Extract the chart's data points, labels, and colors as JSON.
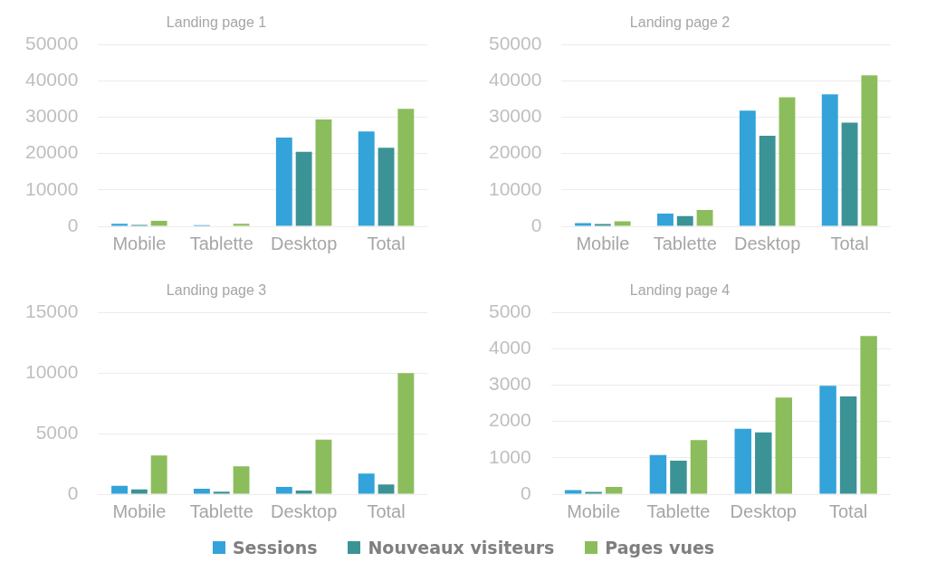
{
  "chart_data": [
    {
      "type": "bar",
      "title": "Landing page 1",
      "categories": [
        "Mobile",
        "Tablette",
        "Desktop",
        "Total"
      ],
      "ylim": [
        0,
        50000
      ],
      "yticks": [
        0,
        10000,
        20000,
        30000,
        40000,
        50000
      ],
      "grid": "y",
      "legend": "bottom",
      "series": [
        {
          "name": "Sessions",
          "color": "#33a3d9",
          "values": [
            700,
            300,
            24400,
            26100
          ]
        },
        {
          "name": "Nouveaux visiteurs",
          "color": "#3c9396",
          "values": [
            400,
            null,
            20500,
            21600
          ]
        },
        {
          "name": "Pages vues",
          "color": "#8cbd5c",
          "values": [
            1500,
            700,
            29400,
            32300
          ]
        }
      ]
    },
    {
      "type": "bar",
      "title": "Landing page 2",
      "categories": [
        "Mobile",
        "Tablette",
        "Desktop",
        "Total"
      ],
      "ylim": [
        0,
        50000
      ],
      "yticks": [
        0,
        10000,
        20000,
        30000,
        40000,
        50000
      ],
      "grid": "y",
      "series": [
        {
          "color": "#33a3d9",
          "values": [
            900,
            3500,
            31800,
            36300
          ]
        },
        {
          "color": "#3c9396",
          "values": [
            600,
            2800,
            24900,
            28500
          ]
        },
        {
          "color": "#8cbd5c",
          "values": [
            1400,
            4500,
            35500,
            41500
          ]
        }
      ]
    },
    {
      "type": "bar",
      "title": "Landing page 3",
      "categories": [
        "Mobile",
        "Tablette",
        "Desktop",
        "Total"
      ],
      "ylim": [
        0,
        15000
      ],
      "yticks": [
        0,
        5000,
        10000,
        15000
      ],
      "grid": "y",
      "series": [
        {
          "color": "#33a3d9",
          "values": [
            700,
            450,
            600,
            1700
          ]
        },
        {
          "color": "#3c9396",
          "values": [
            400,
            200,
            300,
            800
          ]
        },
        {
          "color": "#8cbd5c",
          "values": [
            3200,
            2300,
            4500,
            10000
          ]
        }
      ]
    },
    {
      "type": "bar",
      "title": "Landing page 4",
      "categories": [
        "Mobile",
        "Tablette",
        "Desktop",
        "Total"
      ],
      "ylim": [
        0,
        5000
      ],
      "yticks": [
        0,
        1000,
        2000,
        3000,
        4000,
        5000
      ],
      "grid": "y",
      "series": [
        {
          "color": "#33a3d9",
          "values": [
            110,
            1080,
            1800,
            2980
          ]
        },
        {
          "color": "#3c9396",
          "values": [
            60,
            920,
            1700,
            2690
          ]
        },
        {
          "color": "#8cbd5c",
          "values": [
            200,
            1490,
            2660,
            4350
          ]
        }
      ]
    }
  ]
}
